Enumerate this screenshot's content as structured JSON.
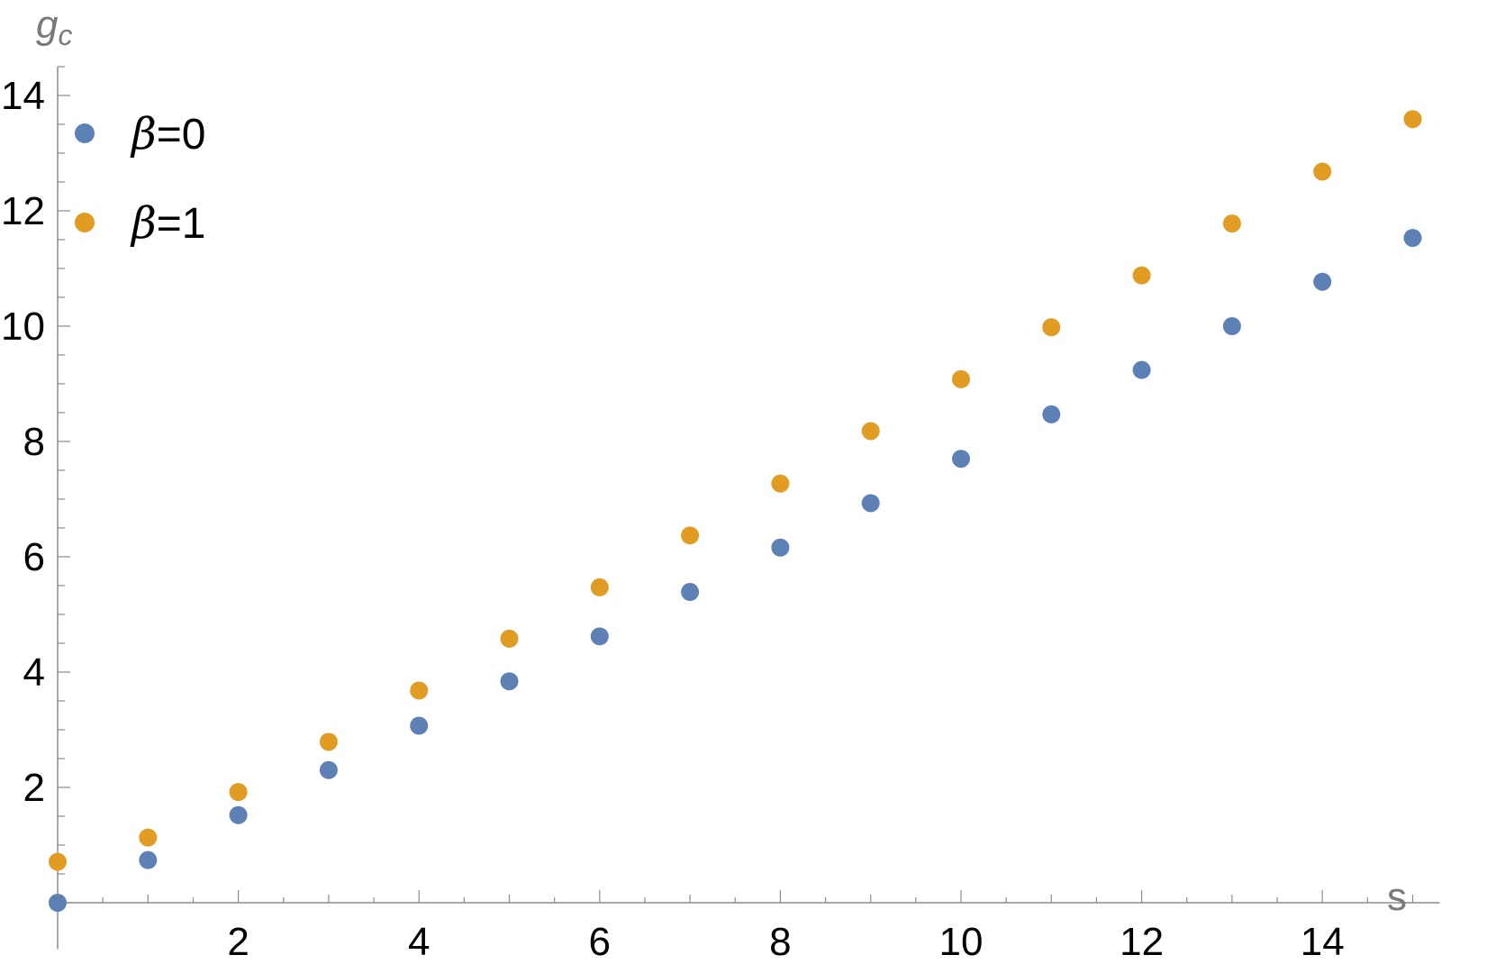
{
  "chart_data": {
    "type": "scatter",
    "title": "",
    "xlabel": "s",
    "ylabel_main": "g",
    "ylabel_sub": "c",
    "xlim": [
      0,
      15.3
    ],
    "ylim": [
      0,
      14.5
    ],
    "x_ticks": [
      2,
      4,
      6,
      8,
      10,
      12,
      14
    ],
    "y_ticks": [
      2,
      4,
      6,
      8,
      10,
      12,
      14
    ],
    "x_minor_step": 1,
    "y_minor_step": 0.5,
    "grid": false,
    "legend_position": "top-left",
    "series": [
      {
        "name_symbol": "β",
        "name_rest": "=0",
        "color": "#5e81b5",
        "x": [
          0,
          1,
          2,
          3,
          4,
          5,
          6,
          7,
          8,
          9,
          10,
          11,
          12,
          13,
          14,
          15
        ],
        "y": [
          0,
          0.74,
          1.52,
          2.3,
          3.07,
          3.84,
          4.62,
          5.39,
          6.16,
          6.93,
          7.7,
          8.47,
          9.24,
          10.0,
          10.77,
          11.53
        ]
      },
      {
        "name_symbol": "β",
        "name_rest": "=1",
        "color": "#e19c24",
        "x": [
          0,
          1,
          2,
          3,
          4,
          5,
          6,
          7,
          8,
          9,
          10,
          11,
          12,
          13,
          14,
          15
        ],
        "y": [
          0.71,
          1.13,
          1.92,
          2.79,
          3.68,
          4.58,
          5.47,
          6.37,
          7.27,
          8.18,
          9.08,
          9.98,
          10.88,
          11.78,
          12.68,
          13.59
        ]
      }
    ]
  }
}
